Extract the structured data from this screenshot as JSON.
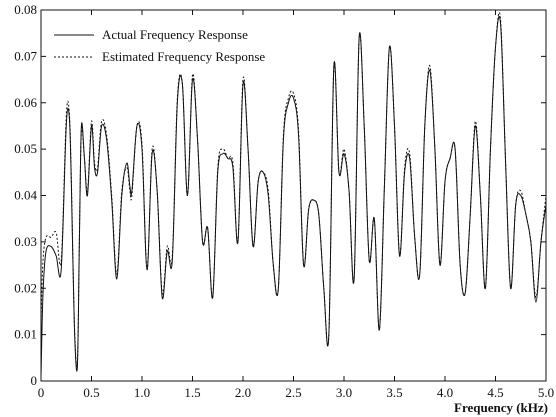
{
  "chart_data": {
    "type": "line",
    "title": "",
    "xlabel": "Frequency (kHz)",
    "ylabel": "",
    "xlim": [
      0,
      5
    ],
    "ylim": [
      0,
      0.08
    ],
    "grid": false,
    "legend_position": "top-left",
    "x_ticks": [
      {
        "value": 0,
        "label": "0"
      },
      {
        "value": 0.5,
        "label": "0.5"
      },
      {
        "value": 1.0,
        "label": "1.0"
      },
      {
        "value": 1.5,
        "label": "1.5"
      },
      {
        "value": 2.0,
        "label": "2.0"
      },
      {
        "value": 2.5,
        "label": "2.5"
      },
      {
        "value": 3.0,
        "label": "3.0"
      },
      {
        "value": 3.5,
        "label": "3.5"
      },
      {
        "value": 4.0,
        "label": "4.0"
      },
      {
        "value": 4.5,
        "label": "4.5"
      },
      {
        "value": 5.0,
        "label": "5.0"
      }
    ],
    "y_ticks": [
      {
        "value": 0,
        "label": "0"
      },
      {
        "value": 0.01,
        "label": "0.01"
      },
      {
        "value": 0.02,
        "label": "0.02"
      },
      {
        "value": 0.03,
        "label": "0.03"
      },
      {
        "value": 0.04,
        "label": "0.04"
      },
      {
        "value": 0.05,
        "label": "0.05"
      },
      {
        "value": 0.06,
        "label": "0.06"
      },
      {
        "value": 0.07,
        "label": "0.07"
      },
      {
        "value": 0.08,
        "label": "0.08"
      }
    ],
    "series": [
      {
        "name": "Actual Frequency Response",
        "style": "solid",
        "color": "#111111",
        "x": [
          0,
          0.02,
          0.05,
          0.1,
          0.15,
          0.2,
          0.25,
          0.28,
          0.3,
          0.33,
          0.36,
          0.38,
          0.4,
          0.43,
          0.46,
          0.5,
          0.53,
          0.56,
          0.6,
          0.65,
          0.7,
          0.75,
          0.8,
          0.85,
          0.88,
          0.9,
          0.95,
          1.0,
          1.05,
          1.1,
          1.15,
          1.2,
          1.25,
          1.3,
          1.35,
          1.4,
          1.45,
          1.5,
          1.55,
          1.6,
          1.65,
          1.7,
          1.75,
          1.8,
          1.85,
          1.9,
          1.95,
          2.0,
          2.05,
          2.1,
          2.15,
          2.2,
          2.25,
          2.3,
          2.35,
          2.4,
          2.45,
          2.5,
          2.55,
          2.6,
          2.65,
          2.7,
          2.75,
          2.8,
          2.85,
          2.9,
          2.95,
          3.0,
          3.05,
          3.1,
          3.15,
          3.2,
          3.25,
          3.3,
          3.35,
          3.4,
          3.45,
          3.5,
          3.55,
          3.6,
          3.65,
          3.7,
          3.75,
          3.8,
          3.85,
          3.9,
          3.95,
          4.0,
          4.05,
          4.1,
          4.15,
          4.2,
          4.25,
          4.3,
          4.35,
          4.4,
          4.45,
          4.5,
          4.55,
          4.6,
          4.65,
          4.7,
          4.75,
          4.8,
          4.85,
          4.9,
          4.95,
          5.0
        ],
        "y": [
          0.001,
          0.019,
          0.028,
          0.029,
          0.027,
          0.024,
          0.055,
          0.057,
          0.043,
          0.012,
          0.003,
          0.03,
          0.055,
          0.048,
          0.04,
          0.055,
          0.046,
          0.045,
          0.055,
          0.052,
          0.039,
          0.022,
          0.04,
          0.047,
          0.042,
          0.041,
          0.055,
          0.05,
          0.024,
          0.049,
          0.041,
          0.018,
          0.028,
          0.026,
          0.06,
          0.064,
          0.04,
          0.065,
          0.052,
          0.03,
          0.033,
          0.018,
          0.045,
          0.049,
          0.048,
          0.046,
          0.03,
          0.064,
          0.05,
          0.029,
          0.043,
          0.045,
          0.04,
          0.025,
          0.02,
          0.052,
          0.06,
          0.061,
          0.053,
          0.025,
          0.037,
          0.039,
          0.036,
          0.02,
          0.01,
          0.068,
          0.045,
          0.049,
          0.041,
          0.022,
          0.074,
          0.055,
          0.026,
          0.035,
          0.011,
          0.042,
          0.072,
          0.055,
          0.027,
          0.045,
          0.048,
          0.031,
          0.023,
          0.055,
          0.067,
          0.05,
          0.025,
          0.043,
          0.048,
          0.05,
          0.025,
          0.019,
          0.036,
          0.055,
          0.04,
          0.02,
          0.05,
          0.072,
          0.077,
          0.047,
          0.02,
          0.038,
          0.04,
          0.036,
          0.03,
          0.017,
          0.03,
          0.038
        ],
        "values": [
          0.001,
          0.019,
          0.028,
          0.029,
          0.027,
          0.024,
          0.055,
          0.057,
          0.043,
          0.012,
          0.003,
          0.03,
          0.055,
          0.048,
          0.04,
          0.055,
          0.046,
          0.045,
          0.055,
          0.052,
          0.039,
          0.022,
          0.04,
          0.047,
          0.042,
          0.041,
          0.055,
          0.05,
          0.024,
          0.049,
          0.041,
          0.018,
          0.028,
          0.026,
          0.06,
          0.064,
          0.04,
          0.065,
          0.052,
          0.03,
          0.033,
          0.018,
          0.045,
          0.049,
          0.048,
          0.046,
          0.03,
          0.064,
          0.05,
          0.029,
          0.043,
          0.045,
          0.04,
          0.025,
          0.02,
          0.052,
          0.06,
          0.061,
          0.053,
          0.025,
          0.037,
          0.039,
          0.036,
          0.02,
          0.01,
          0.068,
          0.045,
          0.049,
          0.041,
          0.022,
          0.074,
          0.055,
          0.026,
          0.035,
          0.011,
          0.042,
          0.072,
          0.055,
          0.027,
          0.045,
          0.048,
          0.031,
          0.023,
          0.055,
          0.067,
          0.05,
          0.025,
          0.043,
          0.048,
          0.05,
          0.025,
          0.019,
          0.036,
          0.055,
          0.04,
          0.02,
          0.05,
          0.072,
          0.077,
          0.047,
          0.02,
          0.038,
          0.04,
          0.036,
          0.03,
          0.017,
          0.03,
          0.038
        ]
      },
      {
        "name": "Estimated Frequency Response",
        "style": "dotted",
        "color": "#111111",
        "x": [
          0,
          0.02,
          0.05,
          0.1,
          0.15,
          0.2,
          0.25,
          0.28,
          0.3,
          0.33,
          0.36,
          0.38,
          0.4,
          0.43,
          0.46,
          0.5,
          0.53,
          0.56,
          0.6,
          0.65,
          0.7,
          0.75,
          0.8,
          0.85,
          0.88,
          0.9,
          0.95,
          1.0,
          1.05,
          1.1,
          1.15,
          1.2,
          1.25,
          1.3,
          1.35,
          1.4,
          1.45,
          1.5,
          1.55,
          1.6,
          1.65,
          1.7,
          1.75,
          1.8,
          1.85,
          1.9,
          1.95,
          2.0,
          2.05,
          2.1,
          2.15,
          2.2,
          2.25,
          2.3,
          2.35,
          2.4,
          2.45,
          2.5,
          2.55,
          2.6,
          2.65,
          2.7,
          2.75,
          2.8,
          2.85,
          2.9,
          2.95,
          3.0,
          3.05,
          3.1,
          3.15,
          3.2,
          3.25,
          3.3,
          3.35,
          3.4,
          3.45,
          3.5,
          3.55,
          3.6,
          3.65,
          3.7,
          3.75,
          3.8,
          3.85,
          3.9,
          3.95,
          4.0,
          4.05,
          4.1,
          4.15,
          4.2,
          4.25,
          4.3,
          4.35,
          4.4,
          4.45,
          4.5,
          4.55,
          4.6,
          4.65,
          4.7,
          4.75,
          4.8,
          4.85,
          4.9,
          4.95,
          5.0
        ],
        "y": [
          0.013,
          0.026,
          0.031,
          0.031,
          0.032,
          0.026,
          0.057,
          0.058,
          0.044,
          0.013,
          0.004,
          0.031,
          0.054,
          0.048,
          0.041,
          0.056,
          0.047,
          0.046,
          0.056,
          0.053,
          0.04,
          0.023,
          0.041,
          0.046,
          0.041,
          0.04,
          0.055,
          0.051,
          0.024,
          0.05,
          0.041,
          0.019,
          0.029,
          0.027,
          0.061,
          0.064,
          0.04,
          0.066,
          0.052,
          0.03,
          0.033,
          0.018,
          0.046,
          0.05,
          0.048,
          0.047,
          0.03,
          0.065,
          0.05,
          0.029,
          0.043,
          0.045,
          0.041,
          0.025,
          0.02,
          0.053,
          0.061,
          0.062,
          0.054,
          0.025,
          0.037,
          0.039,
          0.036,
          0.02,
          0.01,
          0.068,
          0.045,
          0.05,
          0.041,
          0.022,
          0.074,
          0.055,
          0.026,
          0.035,
          0.011,
          0.042,
          0.072,
          0.055,
          0.027,
          0.046,
          0.049,
          0.031,
          0.023,
          0.055,
          0.068,
          0.05,
          0.025,
          0.043,
          0.048,
          0.05,
          0.025,
          0.019,
          0.036,
          0.056,
          0.04,
          0.02,
          0.05,
          0.072,
          0.078,
          0.047,
          0.02,
          0.038,
          0.041,
          0.036,
          0.03,
          0.018,
          0.03,
          0.04
        ],
        "values": [
          0.013,
          0.026,
          0.031,
          0.031,
          0.032,
          0.026,
          0.057,
          0.058,
          0.044,
          0.013,
          0.004,
          0.031,
          0.054,
          0.048,
          0.041,
          0.056,
          0.047,
          0.046,
          0.056,
          0.053,
          0.04,
          0.023,
          0.041,
          0.046,
          0.041,
          0.04,
          0.055,
          0.051,
          0.024,
          0.05,
          0.041,
          0.019,
          0.029,
          0.027,
          0.061,
          0.064,
          0.04,
          0.066,
          0.052,
          0.03,
          0.033,
          0.018,
          0.046,
          0.05,
          0.048,
          0.047,
          0.03,
          0.065,
          0.05,
          0.029,
          0.043,
          0.045,
          0.041,
          0.025,
          0.02,
          0.053,
          0.061,
          0.062,
          0.054,
          0.025,
          0.037,
          0.039,
          0.036,
          0.02,
          0.01,
          0.068,
          0.045,
          0.05,
          0.041,
          0.022,
          0.074,
          0.055,
          0.026,
          0.035,
          0.011,
          0.042,
          0.072,
          0.055,
          0.027,
          0.046,
          0.049,
          0.031,
          0.023,
          0.055,
          0.068,
          0.05,
          0.025,
          0.043,
          0.048,
          0.05,
          0.025,
          0.019,
          0.036,
          0.056,
          0.04,
          0.02,
          0.05,
          0.072,
          0.078,
          0.047,
          0.02,
          0.038,
          0.041,
          0.036,
          0.03,
          0.018,
          0.03,
          0.04
        ]
      }
    ]
  }
}
